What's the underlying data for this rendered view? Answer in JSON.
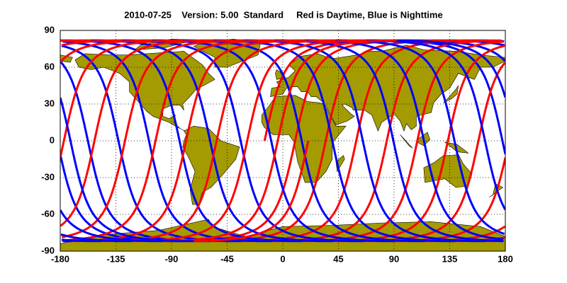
{
  "title": "2010-07-25    Version: 5.00  Standard     Red is Daytime, Blue is Nighttime",
  "map": {
    "xlim": [
      -180,
      180
    ],
    "ylim": [
      -90,
      90
    ],
    "xticks": [
      -180,
      -135,
      -90,
      -45,
      0,
      45,
      90,
      135,
      180
    ],
    "yticks": [
      -90,
      -60,
      -30,
      0,
      30,
      60,
      90
    ],
    "grid": true,
    "land_color": "#a39b00",
    "day_color": "#ff0000",
    "night_color": "#0000ff"
  }
}
